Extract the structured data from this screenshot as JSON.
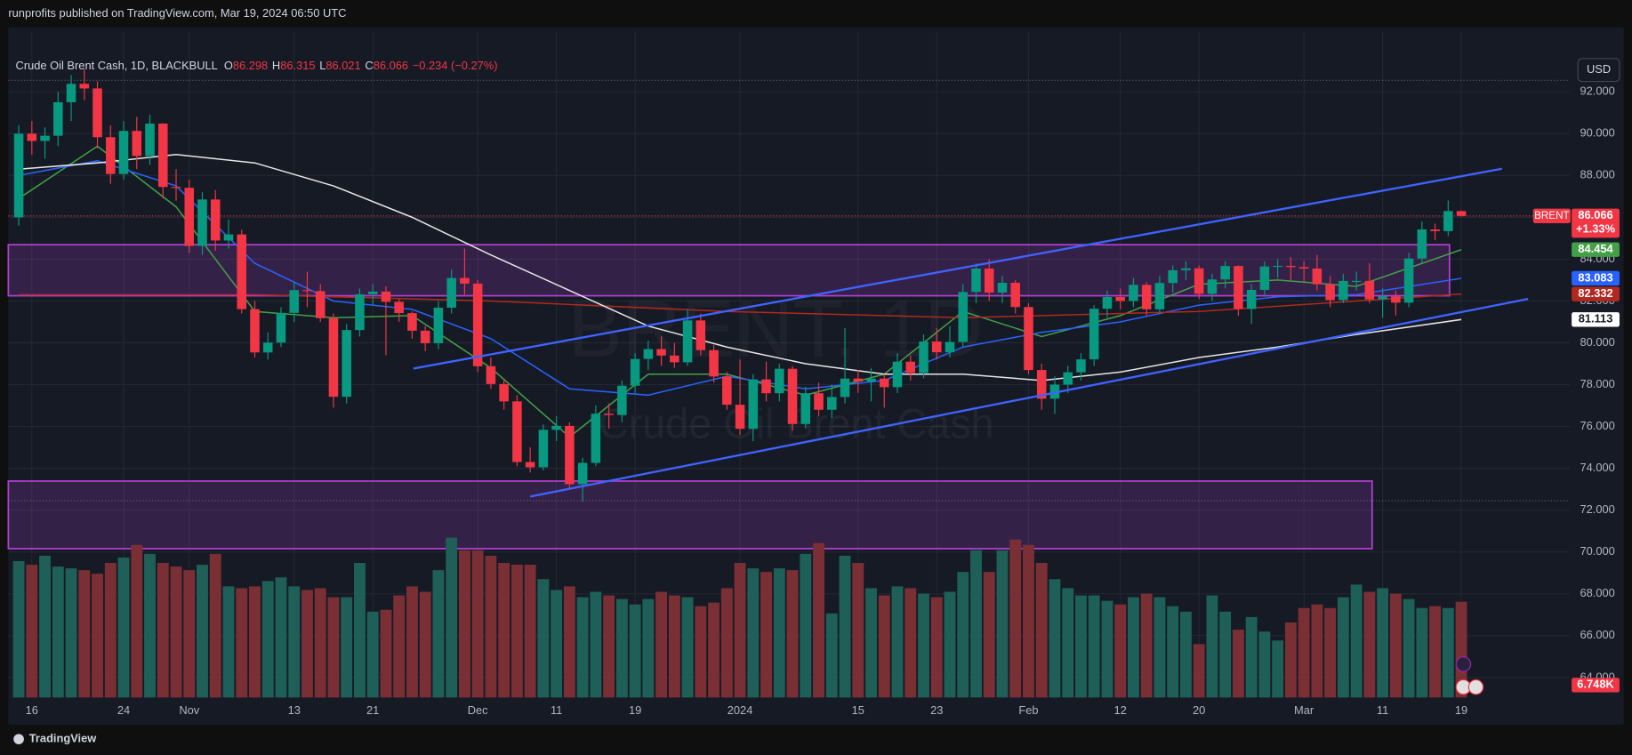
{
  "chart_data": {
    "type": "candlestick",
    "publisher": "runprofits published on TradingView.com, Mar 19, 2024 06:50 UTC",
    "title": "Crude Oil Brent Cash, 1D, BLACKBULL",
    "legend_ohlc": [
      {
        "label": "O",
        "value": 86.298
      },
      {
        "label": "H",
        "value": 86.315
      },
      {
        "label": "L",
        "value": 86.021
      },
      {
        "label": "C",
        "value": 86.066
      }
    ],
    "change": "−0.234 (−0.27%)",
    "watermark_symbol": "BRENT, 1D",
    "watermark_name": "Crude Oil Brent Cash",
    "currency": "USD",
    "symbol": "BRENT",
    "change_pct": "+1.33%",
    "brand": "TradingView",
    "up_color": "#089981",
    "down_color": "#f23645",
    "volume_up_color": "#1e5f58",
    "volume_down_color": "#7a2f35",
    "categories": [
      null,
      "16",
      null,
      null,
      null,
      null,
      null,
      null,
      "24",
      null,
      null,
      null,
      null,
      "Nov",
      null,
      null,
      null,
      null,
      null,
      null,
      null,
      "13",
      null,
      null,
      null,
      null,
      null,
      "21",
      null,
      null,
      null,
      null,
      null,
      null,
      null,
      "Dec",
      null,
      null,
      null,
      null,
      null,
      "11",
      null,
      null,
      null,
      null,
      null,
      "19",
      null,
      null,
      null,
      null,
      null,
      null,
      null,
      "2024",
      null,
      null,
      null,
      null,
      null,
      null,
      null,
      null,
      "15",
      null,
      null,
      null,
      null,
      null,
      "23",
      null,
      null,
      null,
      null,
      null,
      null,
      "Feb",
      null,
      null,
      null,
      null,
      null,
      null,
      "12",
      null,
      null,
      null,
      null,
      null,
      "20",
      null,
      null,
      null,
      null,
      null,
      null,
      null,
      "Mar",
      null,
      null,
      null,
      null,
      null,
      "11",
      null,
      null,
      null,
      null,
      null,
      "19"
    ],
    "open": [
      86.0,
      90.0,
      89.65,
      89.9,
      91.5,
      92.38,
      92.16,
      89.83,
      88.07,
      90.13,
      88.93,
      90.48,
      87.45,
      87.41,
      84.63,
      86.85,
      84.89,
      85.18,
      81.61,
      79.54,
      80.01,
      81.43,
      82.52,
      82.47,
      81.18,
      77.42,
      80.61,
      82.32,
      82.45,
      81.96,
      81.42,
      80.58,
      79.98,
      81.68,
      83.1,
      82.83,
      78.88,
      78.03,
      77.2,
      74.3,
      74.05,
      75.84,
      76.03,
      73.24,
      74.26,
      76.61,
      76.55,
      77.95,
      79.23,
      79.7,
      79.39,
      79.07,
      81.07,
      79.65,
      78.39,
      77.04,
      75.89,
      78.25,
      77.59,
      78.76,
      76.12,
      77.59,
      76.8,
      77.41,
      78.29,
      78.15,
      78.29,
      77.88,
      79.1,
      78.56,
      80.06,
      79.55,
      80.04,
      82.43,
      83.55,
      82.4,
      82.87,
      81.71,
      78.7,
      77.33,
      78.0,
      78.59,
      79.21,
      81.63,
      82.19,
      82.0,
      82.77,
      81.6,
      82.86,
      83.47,
      83.56,
      82.34,
      83.03,
      83.67,
      81.62,
      82.53,
      83.65,
      83.68,
      83.62,
      83.55,
      82.8,
      82.04,
      82.96,
      82.96,
      82.08,
      82.21,
      81.92,
      84.03,
      85.42,
      85.34,
      86.298
    ],
    "high": [
      90.4,
      90.6,
      90.3,
      92.0,
      92.8,
      93.1,
      92.5,
      90.4,
      90.6,
      90.8,
      90.9,
      90.5,
      88.3,
      87.8,
      87.2,
      87.3,
      85.9,
      85.4,
      82.0,
      80.5,
      81.7,
      82.9,
      83.4,
      82.8,
      81.4,
      80.9,
      82.6,
      82.8,
      82.7,
      82.1,
      81.5,
      80.8,
      82.0,
      83.5,
      84.5,
      83.0,
      79.3,
      78.3,
      77.5,
      75.0,
      76.1,
      76.5,
      76.2,
      74.5,
      77.0,
      77.1,
      78.2,
      79.5,
      80.1,
      80.3,
      80.0,
      81.6,
      81.4,
      79.9,
      78.6,
      79.2,
      78.5,
      79.1,
      79.0,
      78.9,
      77.9,
      78.1,
      78.0,
      80.7,
      78.7,
      78.8,
      78.5,
      79.5,
      79.4,
      80.4,
      80.7,
      80.8,
      82.8,
      83.8,
      84.0,
      83.2,
      83.0,
      81.9,
      79.0,
      78.4,
      78.9,
      79.5,
      81.8,
      82.5,
      82.6,
      83.1,
      82.9,
      83.2,
      83.7,
      83.9,
      83.7,
      83.3,
      83.9,
      83.7,
      82.8,
      83.9,
      84.0,
      84.1,
      83.9,
      84.2,
      83.2,
      83.3,
      83.4,
      83.8,
      82.6,
      82.5,
      84.3,
      85.8,
      85.7,
      86.8,
      86.315
    ],
    "low": [
      85.6,
      89.0,
      88.8,
      89.4,
      90.6,
      91.6,
      89.3,
      87.6,
      87.8,
      88.3,
      88.5,
      86.9,
      86.8,
      84.3,
      84.2,
      84.4,
      84.5,
      81.4,
      79.3,
      79.2,
      79.8,
      81.0,
      81.7,
      81.0,
      76.9,
      77.1,
      80.3,
      81.8,
      79.4,
      81.0,
      80.2,
      79.6,
      79.7,
      81.4,
      82.3,
      78.6,
      77.8,
      76.8,
      74.1,
      73.8,
      73.9,
      75.3,
      73.0,
      72.4,
      74.1,
      75.9,
      76.2,
      77.6,
      78.7,
      78.9,
      78.8,
      78.9,
      79.4,
      78.1,
      76.8,
      75.6,
      75.3,
      77.2,
      77.2,
      75.8,
      75.9,
      76.5,
      76.4,
      77.1,
      77.6,
      77.2,
      76.9,
      77.6,
      78.2,
      78.3,
      79.2,
      79.3,
      79.8,
      81.9,
      82.0,
      81.9,
      81.4,
      78.5,
      76.8,
      76.6,
      77.6,
      78.2,
      78.9,
      81.2,
      81.6,
      81.7,
      81.3,
      81.4,
      82.4,
      83.0,
      82.1,
      82.0,
      82.6,
      81.3,
      80.9,
      82.2,
      83.1,
      83.0,
      82.9,
      82.5,
      81.7,
      81.9,
      82.5,
      81.9,
      81.2,
      81.3,
      81.7,
      83.8,
      84.9,
      85.1,
      86.021
    ],
    "close": [
      90.0,
      89.65,
      89.9,
      91.5,
      92.38,
      92.16,
      89.83,
      88.07,
      90.13,
      88.93,
      90.48,
      87.45,
      87.41,
      84.63,
      86.85,
      84.89,
      85.18,
      81.61,
      79.54,
      80.01,
      81.43,
      82.52,
      82.47,
      81.18,
      77.42,
      80.61,
      82.32,
      82.45,
      81.96,
      81.42,
      80.58,
      79.98,
      81.68,
      83.1,
      82.83,
      78.88,
      78.03,
      77.2,
      74.3,
      74.05,
      75.84,
      76.03,
      73.24,
      74.26,
      76.61,
      76.55,
      77.95,
      79.23,
      79.7,
      79.39,
      79.07,
      81.07,
      79.65,
      78.39,
      77.04,
      75.89,
      78.25,
      77.59,
      78.76,
      76.12,
      77.59,
      76.8,
      77.41,
      78.29,
      78.15,
      78.29,
      77.88,
      79.1,
      78.56,
      80.06,
      79.55,
      80.04,
      82.43,
      83.55,
      82.4,
      82.87,
      81.71,
      78.7,
      77.33,
      78.0,
      78.59,
      79.21,
      81.63,
      82.19,
      82.0,
      82.77,
      81.6,
      82.86,
      83.47,
      83.56,
      82.34,
      83.03,
      83.67,
      81.62,
      82.53,
      83.65,
      83.68,
      83.62,
      83.55,
      82.8,
      82.04,
      82.96,
      82.96,
      82.08,
      82.21,
      81.92,
      84.03,
      85.42,
      85.34,
      86.3,
      86.066
    ],
    "volume": [
      9.0,
      8.8,
      9.3,
      8.7,
      8.6,
      8.5,
      8.3,
      8.9,
      9.2,
      9.9,
      9.4,
      8.9,
      8.7,
      8.5,
      8.8,
      9.4,
      7.6,
      7.5,
      7.6,
      7.9,
      8.1,
      7.6,
      7.4,
      7.5,
      7.0,
      7.0,
      8.9,
      6.2,
      6.3,
      7.1,
      7.6,
      7.3,
      8.5,
      10.3,
      9.6,
      9.6,
      9.3,
      8.9,
      8.8,
      8.8,
      8.0,
      7.4,
      7.6,
      7.0,
      7.3,
      7.1,
      6.9,
      6.6,
      6.9,
      7.3,
      7.1,
      7.0,
      6.5,
      6.7,
      7.5,
      8.9,
      8.6,
      8.4,
      8.6,
      8.5,
      9.4,
      10.0,
      6.1,
      9.3,
      8.9,
      7.5,
      7.1,
      7.6,
      7.5,
      7.2,
      7.0,
      7.3,
      8.4,
      9.6,
      8.4,
      9.6,
      10.2,
      9.9,
      8.9,
      8.0,
      7.5,
      7.1,
      7.1,
      6.8,
      6.6,
      7.0,
      7.2,
      7.0,
      6.5,
      6.2,
      4.4,
      7.1,
      6.2,
      5.2,
      5.9,
      5.1,
      4.6,
      5.6,
      6.4,
      6.6,
      6.4,
      7.0,
      7.7,
      7.3,
      7.5,
      7.2,
      6.9,
      6.4,
      6.5,
      6.4,
      6.748
    ],
    "volume_label": "6.748K",
    "ylim": [
      61.8,
      93.64
    ],
    "yticks": [
      {
        "value": 64,
        "label": "64.000"
      },
      {
        "value": 66,
        "label": "66.000"
      },
      {
        "value": 68,
        "label": "68.000"
      },
      {
        "value": 70,
        "label": "70.000"
      },
      {
        "value": 72,
        "label": "72.000"
      },
      {
        "value": 74,
        "label": "74.000"
      },
      {
        "value": 76,
        "label": "76.000"
      },
      {
        "value": 78,
        "label": "78.000"
      },
      {
        "value": 80,
        "label": "80.000"
      },
      {
        "value": 82,
        "label": "82.000"
      },
      {
        "value": 84,
        "label": "84.000"
      },
      {
        "value": 86,
        "label": "86.000"
      },
      {
        "value": 88,
        "label": "88.000"
      },
      {
        "value": 90,
        "label": "90.000"
      },
      {
        "value": 92,
        "label": "92.000"
      }
    ],
    "grid": true,
    "moving_averages": [
      {
        "color": "#43a047",
        "x": [
          0,
          6,
          12,
          18,
          24,
          30,
          36,
          42,
          48,
          54,
          60,
          66,
          72,
          78,
          84,
          90,
          96,
          102,
          110
        ],
        "values": [
          86.9,
          89.4,
          86.5,
          81.5,
          81.2,
          81.3,
          78.8,
          75.5,
          78.5,
          78.5,
          77.5,
          78.5,
          81.5,
          80.3,
          81.3,
          82.8,
          83.0,
          82.7,
          84.454
        ]
      },
      {
        "color": "#2962ff",
        "x": [
          0,
          6,
          12,
          18,
          24,
          30,
          36,
          42,
          48,
          54,
          60,
          66,
          72,
          78,
          84,
          90,
          96,
          102,
          110
        ],
        "values": [
          88.0,
          88.7,
          87.5,
          83.8,
          82.0,
          81.6,
          80.2,
          77.8,
          77.5,
          78.4,
          77.8,
          78.2,
          79.8,
          80.5,
          81.0,
          81.8,
          82.2,
          82.3,
          83.083
        ]
      },
      {
        "color": "#b2281f",
        "x": [
          0,
          18,
          36,
          54,
          72,
          90,
          110
        ],
        "values": [
          82.3,
          82.3,
          82.0,
          81.5,
          81.2,
          81.5,
          82.332
        ]
      },
      {
        "color": "#e6e6e6",
        "x": [
          0,
          6,
          12,
          18,
          24,
          30,
          36,
          42,
          48,
          54,
          60,
          66,
          72,
          78,
          84,
          90,
          96,
          102,
          110
        ],
        "values": [
          88.3,
          88.6,
          89.0,
          88.6,
          87.5,
          86.0,
          84.2,
          82.5,
          80.8,
          79.8,
          79.0,
          78.5,
          78.5,
          78.2,
          78.6,
          79.3,
          79.8,
          80.4,
          81.113
        ]
      }
    ],
    "trendlines": [
      {
        "color": "#3f63ff",
        "x": [
          30.1,
          113.1
        ],
        "values": [
          78.77,
          88.32
        ]
      },
      {
        "color": "#3f63ff",
        "x": [
          39.0,
          115.1
        ],
        "values": [
          72.65,
          82.1
        ]
      }
    ],
    "zones": [
      {
        "color": "#b03fd1",
        "x": [
          -0.8,
          109.1
        ],
        "values": [
          82.25,
          84.69
        ]
      },
      {
        "color": "#b03fd1",
        "x": [
          -0.8,
          103.2
        ],
        "values": [
          70.16,
          73.39
        ]
      }
    ],
    "dotted_levels": [
      72.45,
      92.55
    ]
  }
}
